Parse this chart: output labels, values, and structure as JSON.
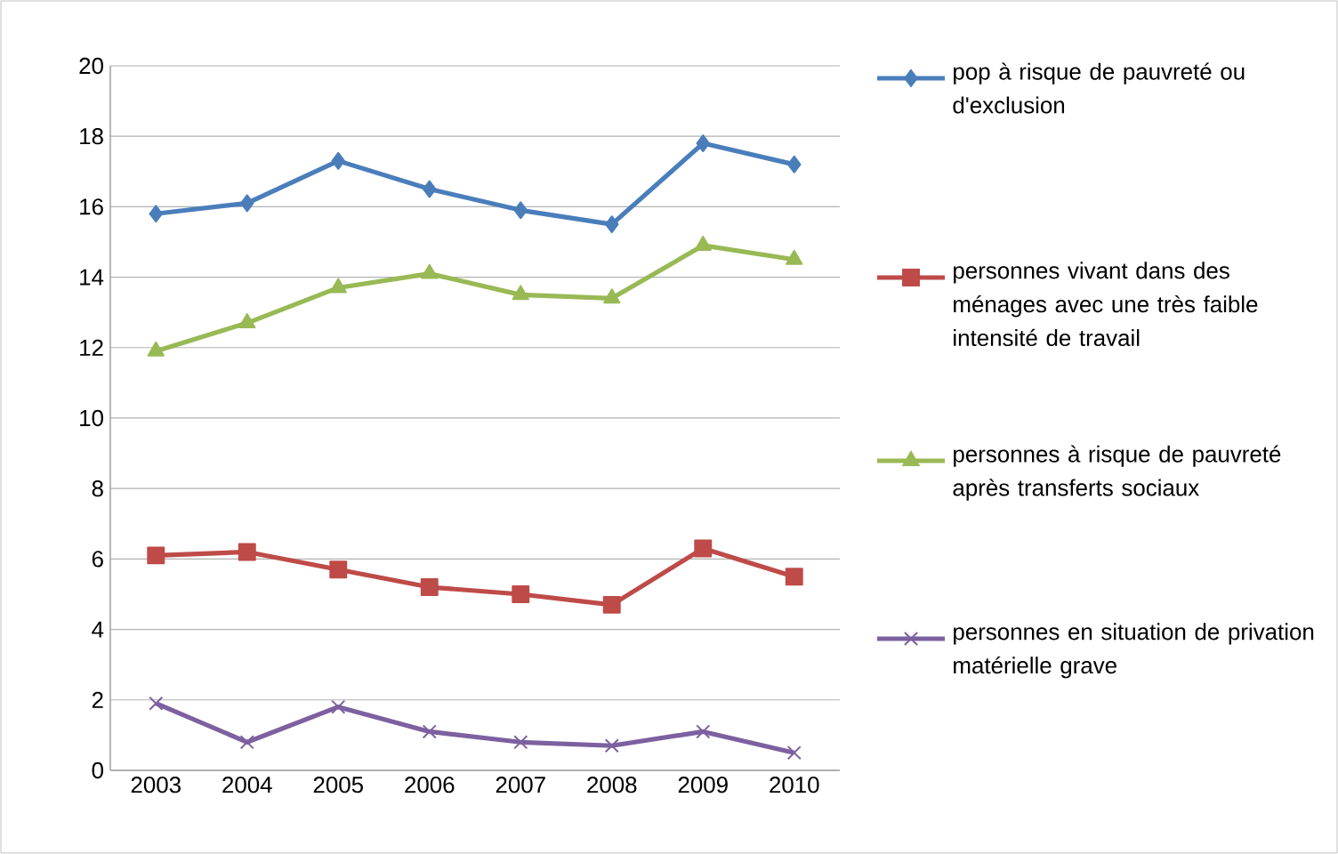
{
  "chart_data": {
    "type": "line",
    "categories": [
      "2003",
      "2004",
      "2005",
      "2006",
      "2007",
      "2008",
      "2009",
      "2010"
    ],
    "series": [
      {
        "name": "pop à risque de pauvreté ou d'exclusion",
        "color": "#4a7ebb",
        "marker": "diamond",
        "values": [
          15.8,
          16.1,
          17.3,
          16.5,
          15.9,
          15.5,
          17.8,
          17.2
        ]
      },
      {
        "name": "personnes vivant dans des ménages avec une très faible intensité de travail",
        "color": "#be4b48",
        "marker": "square",
        "values": [
          6.1,
          6.2,
          5.7,
          5.2,
          5.0,
          4.7,
          6.3,
          5.5
        ]
      },
      {
        "name": "personnes à risque de pauvreté après transferts sociaux",
        "color": "#98b954",
        "marker": "triangle",
        "values": [
          11.9,
          12.7,
          13.7,
          14.1,
          13.5,
          13.4,
          14.9,
          14.5
        ]
      },
      {
        "name": "personnes en situation de privation matérielle grave",
        "color": "#7d60a0",
        "marker": "cross",
        "values": [
          1.9,
          0.8,
          1.8,
          1.1,
          0.8,
          0.7,
          1.1,
          0.5
        ]
      }
    ],
    "ylim": [
      0,
      20
    ],
    "yticks": [
      0,
      2,
      4,
      6,
      8,
      10,
      12,
      14,
      16,
      18,
      20
    ],
    "grid": "y",
    "legend": "right"
  }
}
